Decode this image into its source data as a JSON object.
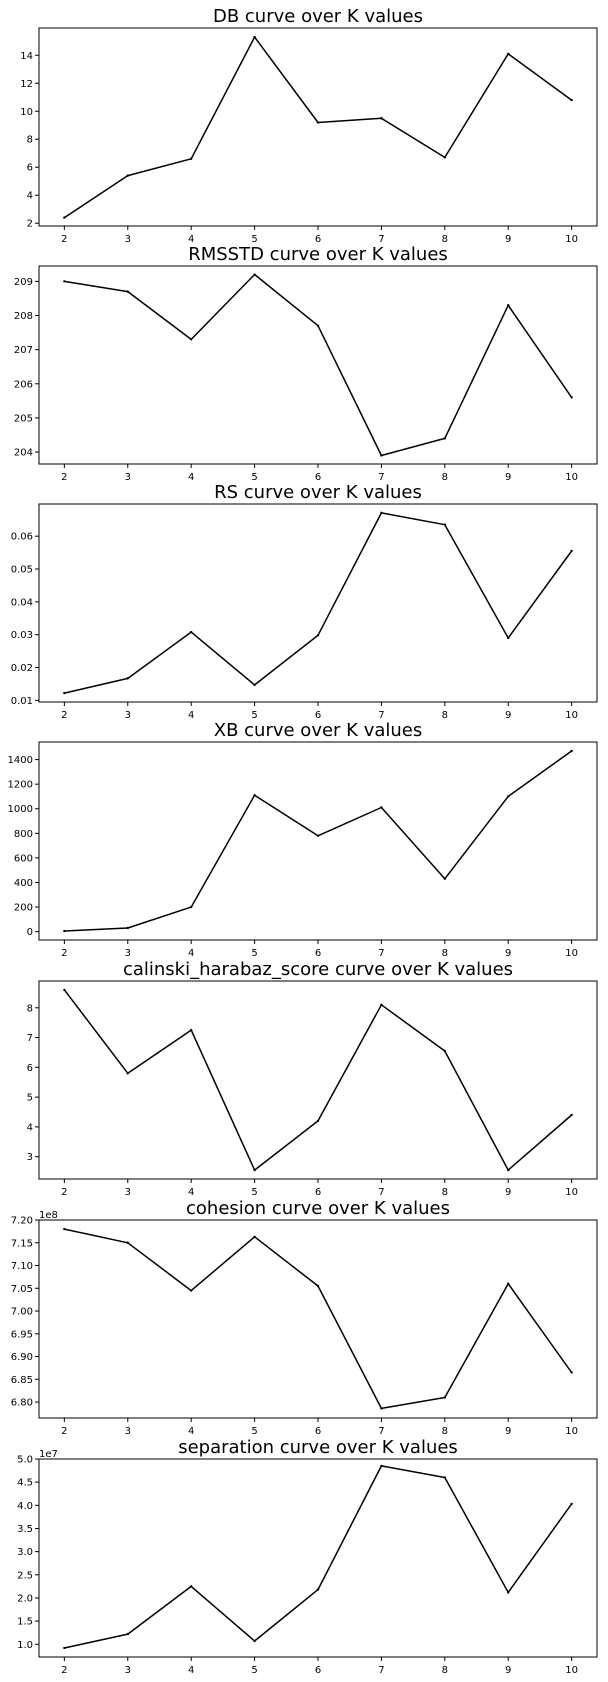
{
  "chart_data": [
    {
      "type": "line",
      "title": "DB curve over K values",
      "x": [
        2,
        3,
        4,
        5,
        6,
        7,
        8,
        9,
        10
      ],
      "y": [
        2.4,
        5.4,
        6.6,
        15.3,
        9.2,
        9.5,
        6.7,
        14.1,
        10.8
      ],
      "xlim": [
        1.6,
        10.4
      ],
      "ylim": [
        1.8,
        15.95
      ],
      "yticks": [
        2,
        4,
        6,
        8,
        10,
        12,
        14
      ],
      "ytick_labels": [
        "2",
        "4",
        "6",
        "8",
        "10",
        "12",
        "14"
      ],
      "offset_label": "",
      "grid": false,
      "line_color": "#000000"
    },
    {
      "type": "line",
      "title": "RMSSTD curve over K values",
      "x": [
        2,
        3,
        4,
        5,
        6,
        7,
        8,
        9,
        10
      ],
      "y": [
        209.0,
        208.7,
        207.3,
        209.2,
        207.7,
        203.9,
        204.4,
        208.3,
        205.6
      ],
      "xlim": [
        1.6,
        10.4
      ],
      "ylim": [
        203.65,
        209.45
      ],
      "yticks": [
        204,
        205,
        206,
        207,
        208,
        209
      ],
      "ytick_labels": [
        "204",
        "205",
        "206",
        "207",
        "208",
        "209"
      ],
      "offset_label": "",
      "grid": false,
      "line_color": "#000000"
    },
    {
      "type": "line",
      "title": "RS curve over K values",
      "x": [
        2,
        3,
        4,
        5,
        6,
        7,
        8,
        9,
        10
      ],
      "y": [
        0.0122,
        0.0167,
        0.0308,
        0.0147,
        0.0298,
        0.0671,
        0.0635,
        0.029,
        0.0555
      ],
      "xlim": [
        1.6,
        10.4
      ],
      "ylim": [
        0.0095,
        0.0698
      ],
      "yticks": [
        0.01,
        0.02,
        0.03,
        0.04,
        0.05,
        0.06
      ],
      "ytick_labels": [
        "0.01",
        "0.02",
        "0.03",
        "0.04",
        "0.05",
        "0.06"
      ],
      "offset_label": "",
      "grid": false,
      "line_color": "#000000"
    },
    {
      "type": "line",
      "title": "XB curve over K values",
      "x": [
        2,
        3,
        4,
        5,
        6,
        7,
        8,
        9,
        10
      ],
      "y": [
        5,
        30,
        200,
        1110,
        780,
        1010,
        430,
        1100,
        1470
      ],
      "xlim": [
        1.6,
        10.4
      ],
      "ylim": [
        -68,
        1543
      ],
      "yticks": [
        0,
        200,
        400,
        600,
        800,
        1000,
        1200,
        1400
      ],
      "ytick_labels": [
        "0",
        "200",
        "400",
        "600",
        "800",
        "1000",
        "1200",
        "1400"
      ],
      "offset_label": "",
      "grid": false,
      "line_color": "#000000"
    },
    {
      "type": "line",
      "title": "calinski_harabaz_score curve over K values",
      "x": [
        2,
        3,
        4,
        5,
        6,
        7,
        8,
        9,
        10
      ],
      "y": [
        8.6,
        5.8,
        7.25,
        2.55,
        4.2,
        8.1,
        6.55,
        2.55,
        4.4
      ],
      "xlim": [
        1.6,
        10.4
      ],
      "ylim": [
        2.25,
        8.9
      ],
      "yticks": [
        3,
        4,
        5,
        6,
        7,
        8
      ],
      "ytick_labels": [
        "3",
        "4",
        "5",
        "6",
        "7",
        "8"
      ],
      "offset_label": "",
      "grid": false,
      "line_color": "#000000"
    },
    {
      "type": "line",
      "title": "cohesion curve over K values",
      "x": [
        2,
        3,
        4,
        5,
        6,
        7,
        8,
        9,
        10
      ],
      "y": [
        7.18,
        7.15,
        7.045,
        7.163,
        7.055,
        6.786,
        6.81,
        7.06,
        6.865
      ],
      "xlim": [
        1.6,
        10.4
      ],
      "ylim": [
        6.765,
        7.2
      ],
      "yticks": [
        6.8,
        6.85,
        6.9,
        6.95,
        7.0,
        7.05,
        7.1,
        7.15,
        7.2
      ],
      "ytick_labels": [
        "6.80",
        "6.85",
        "6.90",
        "6.95",
        "7.00",
        "7.05",
        "7.10",
        "7.15",
        "7.20"
      ],
      "offset_label": "1e8",
      "grid": false,
      "line_color": "#000000"
    },
    {
      "type": "line",
      "title": "separation curve over K values",
      "x": [
        2,
        3,
        4,
        5,
        6,
        7,
        8,
        9,
        10
      ],
      "y": [
        0.92,
        1.22,
        2.25,
        1.07,
        2.18,
        4.85,
        4.6,
        2.12,
        4.03
      ],
      "xlim": [
        1.6,
        10.4
      ],
      "ylim": [
        0.725,
        5.0
      ],
      "yticks": [
        1.0,
        1.5,
        2.0,
        2.5,
        3.0,
        3.5,
        4.0,
        4.5,
        5.0
      ],
      "ytick_labels": [
        "1.0",
        "1.5",
        "2.0",
        "2.5",
        "3.0",
        "3.5",
        "4.0",
        "4.5",
        "5.0"
      ],
      "offset_label": "1e7",
      "grid": false,
      "line_color": "#000000"
    }
  ]
}
